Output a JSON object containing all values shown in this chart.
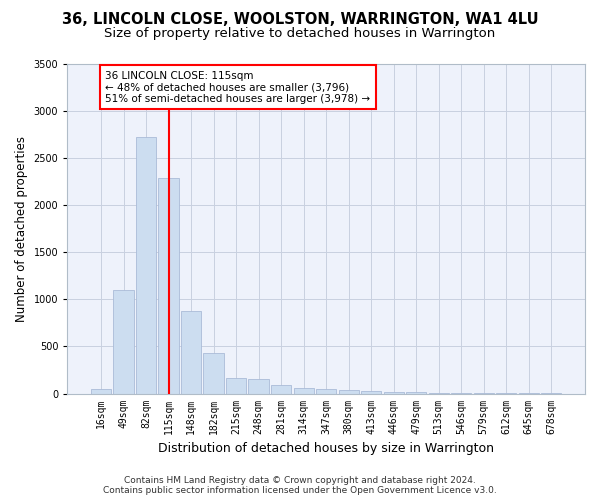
{
  "title_line1": "36, LINCOLN CLOSE, WOOLSTON, WARRINGTON, WA1 4LU",
  "title_line2": "Size of property relative to detached houses in Warrington",
  "xlabel": "Distribution of detached houses by size in Warrington",
  "ylabel": "Number of detached properties",
  "categories": [
    "16sqm",
    "49sqm",
    "82sqm",
    "115sqm",
    "148sqm",
    "182sqm",
    "215sqm",
    "248sqm",
    "281sqm",
    "314sqm",
    "347sqm",
    "380sqm",
    "413sqm",
    "446sqm",
    "479sqm",
    "513sqm",
    "546sqm",
    "579sqm",
    "612sqm",
    "645sqm",
    "678sqm"
  ],
  "values": [
    45,
    1100,
    2730,
    2290,
    880,
    430,
    165,
    155,
    90,
    60,
    45,
    35,
    25,
    18,
    12,
    8,
    6,
    4,
    4,
    3,
    2
  ],
  "bar_color": "#ccddf0",
  "bar_edgecolor": "#aabbd8",
  "vline_x_idx": 3,
  "vline_color": "red",
  "annotation_text": "36 LINCOLN CLOSE: 115sqm\n← 48% of detached houses are smaller (3,796)\n51% of semi-detached houses are larger (3,978) →",
  "annotation_box_facecolor": "white",
  "annotation_box_edgecolor": "red",
  "ylim": [
    0,
    3500
  ],
  "yticks": [
    0,
    500,
    1000,
    1500,
    2000,
    2500,
    3000,
    3500
  ],
  "bg_color": "#ffffff",
  "plot_bg_color": "#eef2fb",
  "grid_color": "#c8d0e0",
  "title_fontsize": 10.5,
  "subtitle_fontsize": 9.5,
  "ylabel_fontsize": 8.5,
  "xlabel_fontsize": 9,
  "tick_fontsize": 7,
  "annotation_fontsize": 7.5,
  "footer_fontsize": 6.5,
  "footer_line1": "Contains HM Land Registry data © Crown copyright and database right 2024.",
  "footer_line2": "Contains public sector information licensed under the Open Government Licence v3.0."
}
